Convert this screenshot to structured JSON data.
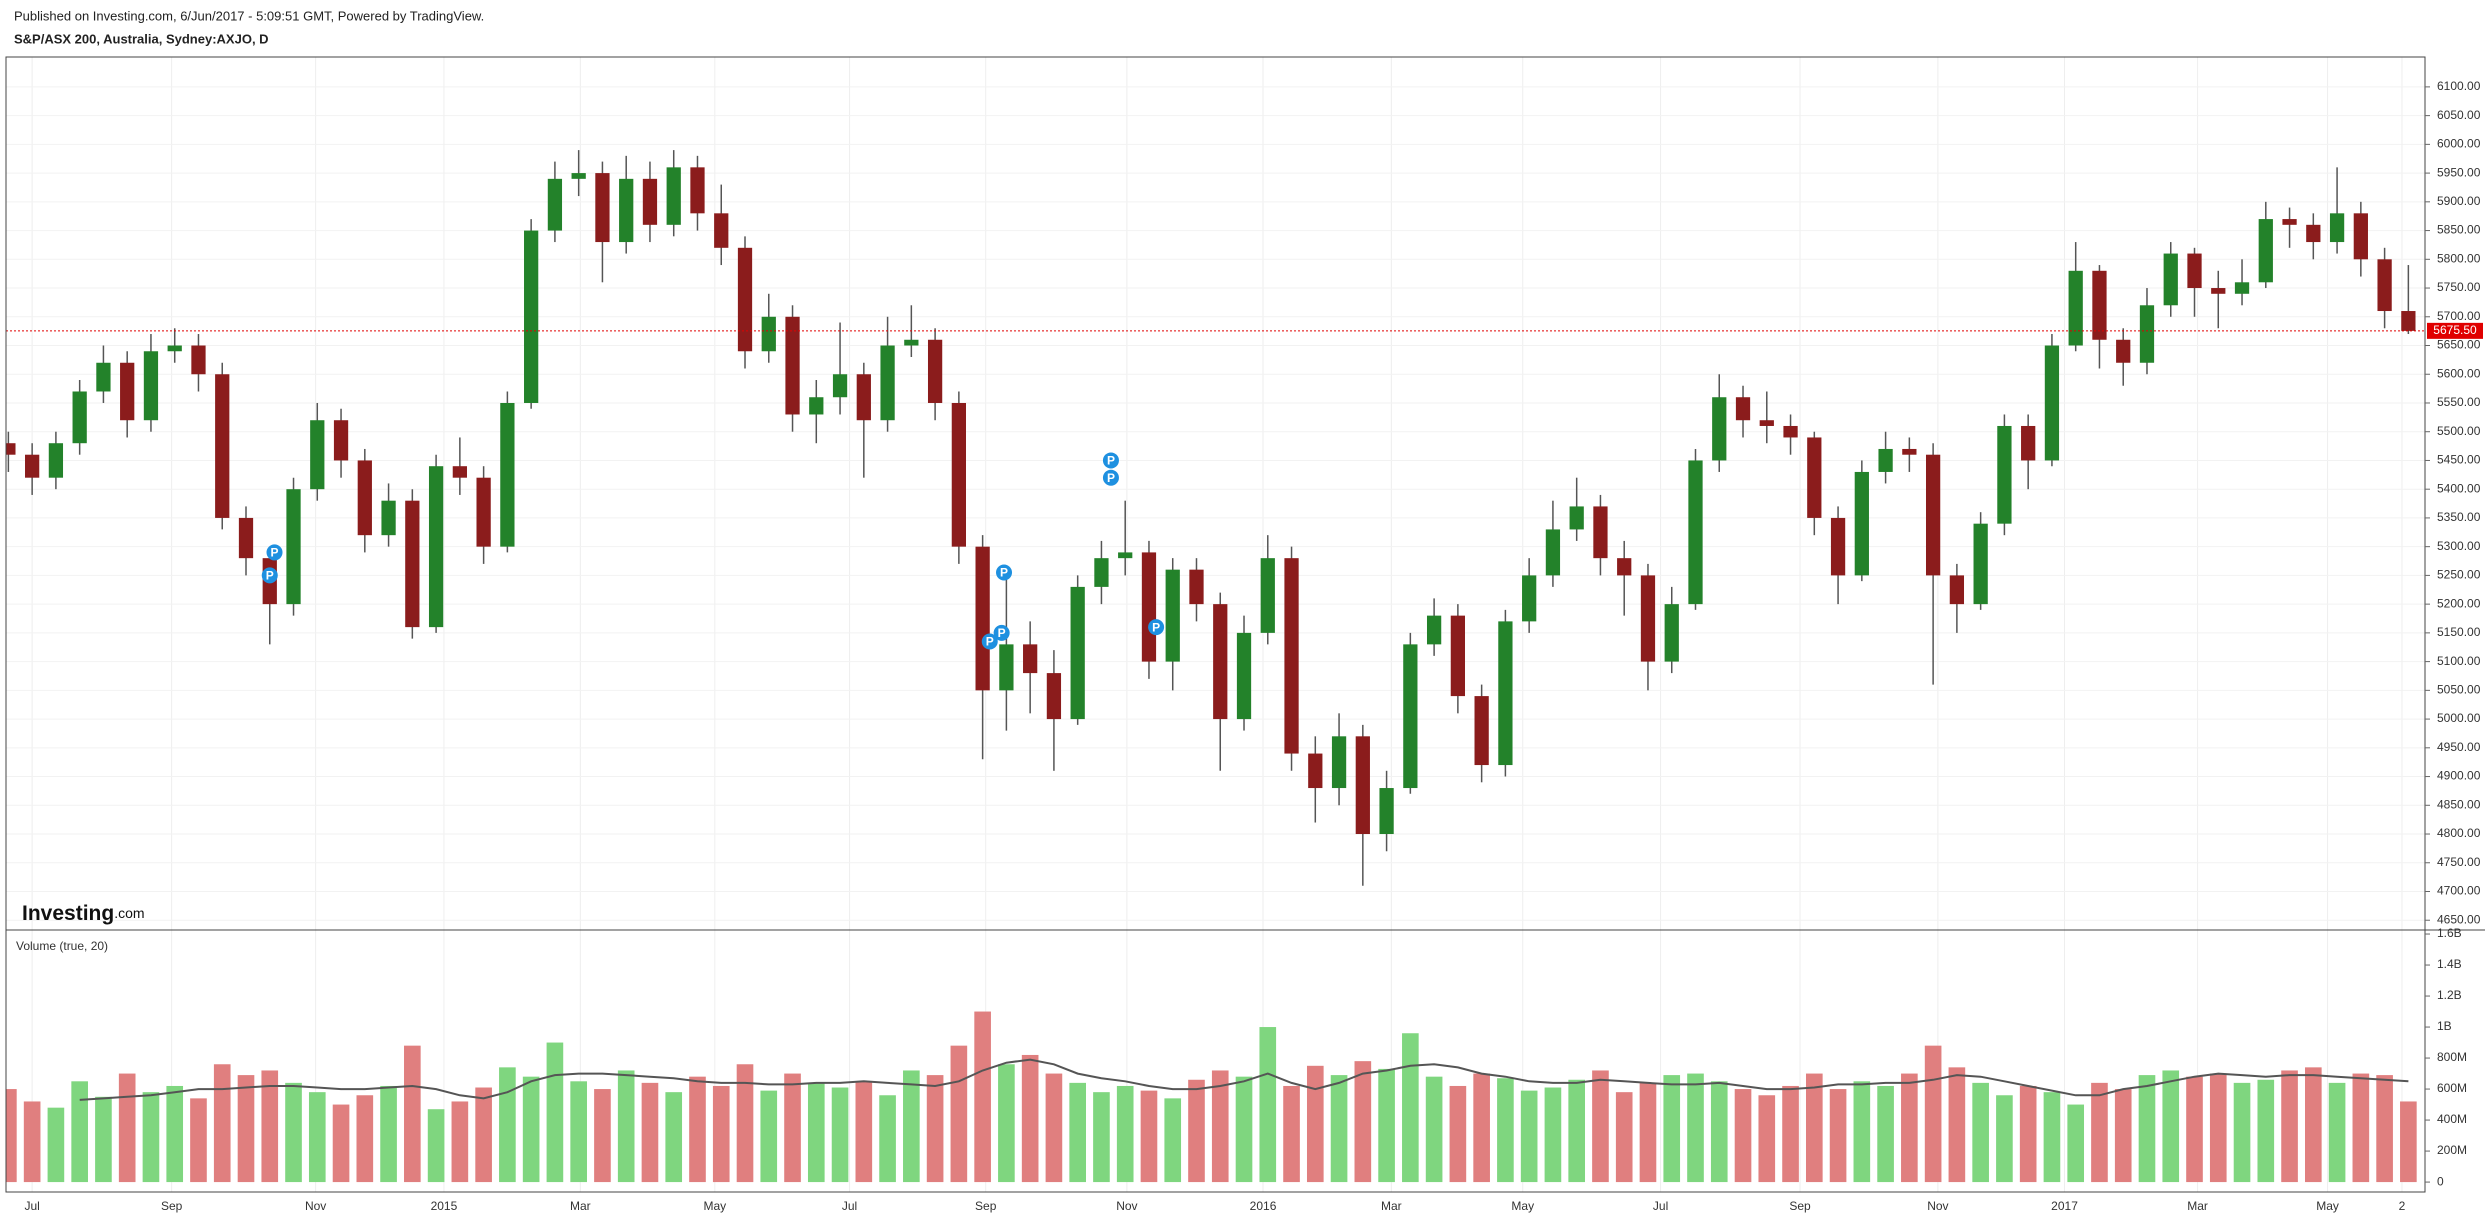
{
  "header": {
    "published": "Published on Investing.com, 6/Jun/2017 - 5:09:51 GMT, Powered by TradingView.",
    "symbol": "S&P/ASX 200, Australia, Sydney:AXJO, D"
  },
  "chart_data": [
    {
      "type": "candlestick",
      "open": [
        5480,
        5460,
        5420,
        5480,
        5570,
        5620,
        5520,
        5640,
        5650,
        5600,
        5350,
        5280,
        5200,
        5400,
        5520,
        5450,
        5320,
        5380,
        5160,
        5440,
        5420,
        5300,
        5550,
        5850,
        5940,
        5950,
        5830,
        5940,
        5860,
        5960,
        5880,
        5820,
        5640,
        5700,
        5530,
        5560,
        5600,
        5520,
        5650,
        5660,
        5550,
        5300,
        5050,
        5130,
        5080,
        5000,
        5230,
        5280,
        5290,
        5100,
        5260,
        5200,
        5000,
        5150,
        5280,
        4940,
        4880,
        4970,
        4800,
        4880,
        5130,
        5180,
        5040,
        4920,
        5170,
        5250,
        5330,
        5370,
        5280,
        5250,
        5100,
        5200,
        5450,
        5560,
        5520,
        5510,
        5490,
        5350,
        5250,
        5430,
        5470,
        5460,
        5250,
        5200,
        5340,
        5510,
        5450,
        5650,
        5780,
        5660,
        5620,
        5720,
        5810,
        5750,
        5740,
        5760,
        5870,
        5860,
        5830,
        5880,
        5800,
        5710
      ],
      "high": [
        5500,
        5480,
        5500,
        5590,
        5650,
        5640,
        5670,
        5680,
        5670,
        5620,
        5370,
        5300,
        5420,
        5550,
        5540,
        5470,
        5410,
        5400,
        5460,
        5490,
        5440,
        5570,
        5870,
        5970,
        5990,
        5970,
        5980,
        5970,
        5990,
        5980,
        5930,
        5840,
        5740,
        5720,
        5590,
        5690,
        5620,
        5700,
        5720,
        5680,
        5570,
        5320,
        5260,
        5170,
        5120,
        5250,
        5310,
        5380,
        5310,
        5280,
        5280,
        5220,
        5180,
        5320,
        5300,
        4970,
        5010,
        4990,
        4910,
        5150,
        5210,
        5200,
        5060,
        5190,
        5280,
        5380,
        5420,
        5390,
        5310,
        5270,
        5230,
        5470,
        5600,
        5580,
        5570,
        5530,
        5500,
        5370,
        5450,
        5500,
        5490,
        5480,
        5270,
        5360,
        5530,
        5530,
        5670,
        5830,
        5790,
        5680,
        5750,
        5830,
        5820,
        5780,
        5800,
        5900,
        5890,
        5880,
        5960,
        5900,
        5820,
        5790
      ],
      "low": [
        5430,
        5390,
        5400,
        5460,
        5550,
        5490,
        5500,
        5620,
        5570,
        5330,
        5250,
        5130,
        5180,
        5380,
        5420,
        5290,
        5300,
        5140,
        5150,
        5390,
        5270,
        5290,
        5540,
        5830,
        5910,
        5760,
        5810,
        5830,
        5840,
        5850,
        5790,
        5610,
        5620,
        5500,
        5480,
        5530,
        5420,
        5500,
        5630,
        5520,
        5270,
        4930,
        4980,
        5010,
        4910,
        4990,
        5200,
        5250,
        5070,
        5050,
        5170,
        4910,
        4980,
        5130,
        4910,
        4820,
        4850,
        4710,
        4770,
        4870,
        5110,
        5010,
        4890,
        4900,
        5150,
        5230,
        5310,
        5250,
        5180,
        5050,
        5080,
        5190,
        5430,
        5490,
        5480,
        5460,
        5320,
        5200,
        5240,
        5410,
        5430,
        5060,
        5150,
        5190,
        5320,
        5400,
        5440,
        5640,
        5610,
        5580,
        5600,
        5700,
        5700,
        5680,
        5720,
        5750,
        5820,
        5800,
        5810,
        5770,
        5680,
        5670
      ],
      "close": [
        5460,
        5420,
        5480,
        5570,
        5620,
        5520,
        5640,
        5650,
        5600,
        5350,
        5280,
        5200,
        5400,
        5520,
        5450,
        5320,
        5380,
        5160,
        5440,
        5420,
        5300,
        5550,
        5850,
        5940,
        5950,
        5830,
        5940,
        5860,
        5960,
        5880,
        5820,
        5640,
        5700,
        5530,
        5560,
        5600,
        5520,
        5650,
        5660,
        5550,
        5300,
        5050,
        5130,
        5080,
        5000,
        5230,
        5280,
        5290,
        5100,
        5260,
        5200,
        5000,
        5150,
        5280,
        4940,
        4880,
        4970,
        4800,
        4880,
        5130,
        5180,
        5040,
        4920,
        5170,
        5250,
        5330,
        5370,
        5280,
        5250,
        5100,
        5200,
        5450,
        5560,
        5520,
        5510,
        5490,
        5350,
        5250,
        5430,
        5470,
        5460,
        5250,
        5200,
        5340,
        5510,
        5450,
        5650,
        5780,
        5660,
        5620,
        5720,
        5810,
        5750,
        5740,
        5760,
        5870,
        5860,
        5830,
        5880,
        5800,
        5710,
        5675.5
      ],
      "up_color": "#23822a",
      "down_color": "#8b1c1c",
      "grid": true,
      "xlim": [
        -0.1,
        101.7
      ],
      "xticks": [
        {
          "value": 1.0,
          "label": "Jul"
        },
        {
          "value": 6.87,
          "label": "Sep"
        },
        {
          "value": 12.93,
          "label": "Nov"
        },
        {
          "value": 18.33,
          "label": "2015"
        },
        {
          "value": 24.07,
          "label": "Mar"
        },
        {
          "value": 29.73,
          "label": "May"
        },
        {
          "value": 35.4,
          "label": "Jul"
        },
        {
          "value": 41.13,
          "label": "Sep"
        },
        {
          "value": 47.07,
          "label": "Nov"
        },
        {
          "value": 52.8,
          "label": "2016"
        },
        {
          "value": 58.2,
          "label": "Mar"
        },
        {
          "value": 63.73,
          "label": "May"
        },
        {
          "value": 69.53,
          "label": "Jul"
        },
        {
          "value": 75.4,
          "label": "Sep"
        },
        {
          "value": 81.2,
          "label": "Nov"
        },
        {
          "value": 86.53,
          "label": "2017"
        },
        {
          "value": 92.13,
          "label": "Mar"
        },
        {
          "value": 97.6,
          "label": "May"
        },
        {
          "value": 100.73,
          "label": "2"
        }
      ],
      "ylim": [
        4633,
        6152
      ],
      "yticks": [
        {
          "value": 4650,
          "label": "4650.00"
        },
        {
          "value": 4700,
          "label": "4700.00"
        },
        {
          "value": 4750,
          "label": "4750.00"
        },
        {
          "value": 4800,
          "label": "4800.00"
        },
        {
          "value": 4850,
          "label": "4850.00"
        },
        {
          "value": 4900,
          "label": "4900.00"
        },
        {
          "value": 4950,
          "label": "4950.00"
        },
        {
          "value": 5000,
          "label": "5000.00"
        },
        {
          "value": 5050,
          "label": "5050.00"
        },
        {
          "value": 5100,
          "label": "5100.00"
        },
        {
          "value": 5150,
          "label": "5150.00"
        },
        {
          "value": 5200,
          "label": "5200.00"
        },
        {
          "value": 5250,
          "label": "5250.00"
        },
        {
          "value": 5300,
          "label": "5300.00"
        },
        {
          "value": 5350,
          "label": "5350.00"
        },
        {
          "value": 5400,
          "label": "5400.00"
        },
        {
          "value": 5450,
          "label": "5450.00"
        },
        {
          "value": 5500,
          "label": "5500.00"
        },
        {
          "value": 5550,
          "label": "5550.00"
        },
        {
          "value": 5600,
          "label": "5600.00"
        },
        {
          "value": 5650,
          "label": "5650.00"
        },
        {
          "value": 5700,
          "label": "5700.00"
        },
        {
          "value": 5750,
          "label": "5750.00"
        },
        {
          "value": 5800,
          "label": "5800.00"
        },
        {
          "value": 5850,
          "label": "5850.00"
        },
        {
          "value": 5900,
          "label": "5900.00"
        },
        {
          "value": 5950,
          "label": "5950.00"
        },
        {
          "value": 6000,
          "label": "6000.00"
        },
        {
          "value": 6050,
          "label": "6050.00"
        },
        {
          "value": 6100,
          "label": "6100.00"
        }
      ],
      "last_price": {
        "value": 5675.5,
        "label": "5675.50",
        "color": "#e00000"
      },
      "events": [
        {
          "label": "P",
          "x": 11.2,
          "y": 5290
        },
        {
          "label": "P",
          "x": 11.0,
          "y": 5250
        },
        {
          "label": "P",
          "x": 41.9,
          "y": 5255
        },
        {
          "label": "P",
          "x": 41.3,
          "y": 5135
        },
        {
          "label": "P",
          "x": 41.8,
          "y": 5150
        },
        {
          "label": "P",
          "x": 46.4,
          "y": 5450
        },
        {
          "label": "P",
          "x": 46.4,
          "y": 5420
        },
        {
          "label": "P",
          "x": 48.3,
          "y": 5160
        }
      ],
      "watermark": {
        "brand": "Investing",
        "suffix": ".com"
      }
    },
    {
      "type": "volume",
      "title": "Volume (true, 20)",
      "up_color": "#7fd67f",
      "down_color": "#e07f7f",
      "average_color": "#555555",
      "values": [
        600000000,
        520000000,
        480000000,
        650000000,
        550000000,
        700000000,
        580000000,
        620000000,
        540000000,
        760000000,
        690000000,
        720000000,
        640000000,
        580000000,
        500000000,
        560000000,
        620000000,
        880000000,
        470000000,
        520000000,
        610000000,
        740000000,
        680000000,
        900000000,
        650000000,
        600000000,
        720000000,
        640000000,
        580000000,
        680000000,
        620000000,
        760000000,
        590000000,
        700000000,
        640000000,
        610000000,
        650000000,
        560000000,
        720000000,
        690000000,
        880000000,
        1100000000,
        760000000,
        820000000,
        700000000,
        640000000,
        580000000,
        620000000,
        590000000,
        540000000,
        660000000,
        720000000,
        680000000,
        1000000000,
        620000000,
        750000000,
        690000000,
        780000000,
        730000000,
        960000000,
        680000000,
        620000000,
        700000000,
        670000000,
        590000000,
        610000000,
        660000000,
        720000000,
        580000000,
        640000000,
        690000000,
        700000000,
        650000000,
        600000000,
        560000000,
        620000000,
        700000000,
        600000000,
        650000000,
        620000000,
        700000000,
        880000000,
        740000000,
        640000000,
        560000000,
        620000000,
        580000000,
        500000000,
        640000000,
        600000000,
        690000000,
        720000000,
        680000000,
        700000000,
        640000000,
        660000000,
        720000000,
        740000000,
        640000000,
        700000000,
        690000000,
        520000000
      ],
      "average": [
        null,
        null,
        null,
        530000000,
        540000000,
        550000000,
        560000000,
        580000000,
        600000000,
        600000000,
        610000000,
        620000000,
        620000000,
        610000000,
        600000000,
        600000000,
        610000000,
        620000000,
        600000000,
        560000000,
        540000000,
        580000000,
        650000000,
        690000000,
        700000000,
        700000000,
        690000000,
        680000000,
        670000000,
        650000000,
        640000000,
        640000000,
        630000000,
        630000000,
        640000000,
        640000000,
        650000000,
        640000000,
        630000000,
        620000000,
        650000000,
        720000000,
        770000000,
        790000000,
        760000000,
        700000000,
        670000000,
        650000000,
        620000000,
        600000000,
        600000000,
        620000000,
        650000000,
        700000000,
        640000000,
        600000000,
        640000000,
        700000000,
        720000000,
        750000000,
        760000000,
        740000000,
        700000000,
        680000000,
        650000000,
        640000000,
        640000000,
        660000000,
        650000000,
        640000000,
        630000000,
        630000000,
        640000000,
        620000000,
        600000000,
        600000000,
        610000000,
        630000000,
        630000000,
        640000000,
        640000000,
        660000000,
        690000000,
        680000000,
        650000000,
        620000000,
        590000000,
        560000000,
        560000000,
        600000000,
        620000000,
        650000000,
        680000000,
        700000000,
        690000000,
        680000000,
        690000000,
        690000000,
        680000000,
        670000000,
        660000000,
        650000000
      ],
      "ylim": [
        -64000000,
        1626000000
      ],
      "yticks": [
        0,
        {
          "value": 200000000,
          "label": "200M"
        },
        {
          "value": 400000000,
          "label": "400M"
        },
        {
          "value": 600000000,
          "label": "600M"
        },
        {
          "value": 800000000,
          "label": "800M"
        },
        {
          "value": 1000000000,
          "label": "1B"
        },
        {
          "value": 1200000000,
          "label": "1.2B"
        },
        {
          "value": 1400000000,
          "label": "1.4B"
        },
        {
          "value": 1600000000,
          "label": "1.6B"
        }
      ]
    }
  ]
}
